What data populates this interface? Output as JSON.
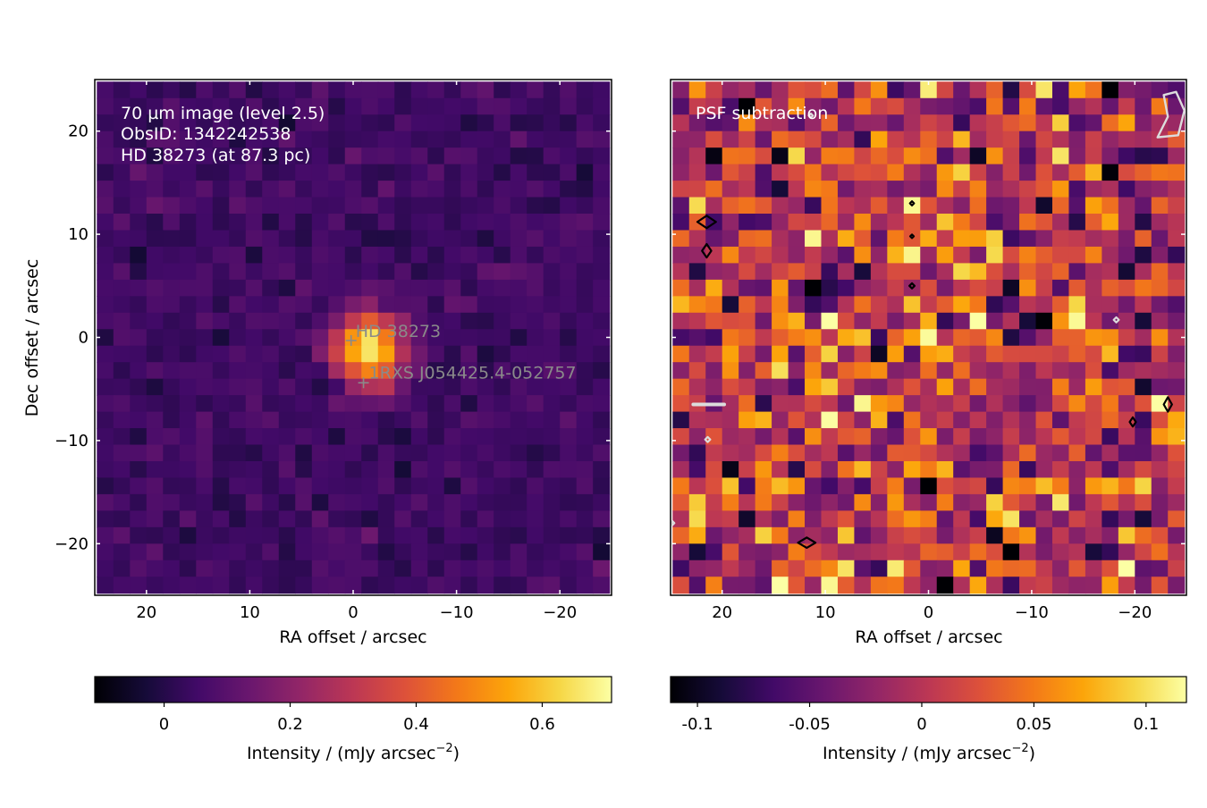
{
  "colors": {
    "colormap": "inferno",
    "marker": "#8a8a8a",
    "overlay_text": "#ffffff",
    "negative_contour": "#dcdcdc",
    "positive_contour": "#000000",
    "axes": "#000000"
  },
  "chart_data": [
    {
      "type": "heatmap",
      "panel": "left",
      "annotation_lines": [
        "70 µm image (level 2.5)",
        "ObsID: 1342242538",
        "HD 38273 (at 87.3 pc)"
      ],
      "xlabel": "RA offset / arcsec",
      "ylabel": "Dec offset / arcsec",
      "xlim": [
        25,
        -25
      ],
      "ylim": [
        -25,
        25
      ],
      "xticks": [
        20,
        10,
        0,
        -10,
        -20
      ],
      "xticklabels": [
        "20",
        "10",
        "0",
        "−10",
        "−20"
      ],
      "yticks": [
        20,
        10,
        0,
        -10,
        -20
      ],
      "yticklabels": [
        "20",
        "10",
        "0",
        "−10",
        "−20"
      ],
      "pixel_size_arcsec": 1.6,
      "grid_columns": 31,
      "grid_rows": 31,
      "background_mean": 0.05,
      "noise_sigma": 0.03,
      "source_peak": {
        "x": -1.6,
        "y": -1.2,
        "value": 0.69
      },
      "sources": [
        {
          "label": "HD  38273",
          "x": 0.2,
          "y": -0.3,
          "marker": "+"
        },
        {
          "label": "1RXS J054425.4-052757",
          "x": -1.0,
          "y": -4.4,
          "marker": "+"
        }
      ],
      "colorbar": {
        "vmin": -0.11,
        "vmax": 0.71,
        "ticks": [
          0,
          0.2,
          0.4,
          0.6
        ],
        "ticklabels": [
          "0",
          "0.2",
          "0.4",
          "0.6"
        ],
        "label_prefix": "Intensity / (mJy arcsec",
        "label_sup": "−2",
        "label_suffix": ")"
      }
    },
    {
      "type": "heatmap",
      "panel": "right",
      "annotation_lines": [
        "PSF subtraction"
      ],
      "xlabel": "RA offset / arcsec",
      "xlim": [
        25,
        -25
      ],
      "ylim": [
        -25,
        25
      ],
      "xticks": [
        20,
        10,
        0,
        -10,
        -20
      ],
      "xticklabels": [
        "20",
        "10",
        "0",
        "−10",
        "−20"
      ],
      "yticks": [
        20,
        10,
        0,
        -10,
        -20
      ],
      "pixel_size_arcsec": 1.6,
      "grid_columns": 31,
      "grid_rows": 31,
      "background_mean": 0.0,
      "noise_sigma": 0.045,
      "positive_contours": [
        {
          "x": 21.5,
          "y": 11.2,
          "w": 1.8,
          "h": 1.2
        },
        {
          "x": 21.5,
          "y": 8.4,
          "w": 0.9,
          "h": 1.3
        },
        {
          "x": 1.6,
          "y": 13.0,
          "w": 0.4,
          "h": 0.4
        },
        {
          "x": 1.6,
          "y": 9.8,
          "w": 0.25,
          "h": 0.25
        },
        {
          "x": 1.6,
          "y": 5.0,
          "w": 0.5,
          "h": 0.5
        },
        {
          "x": -19.8,
          "y": -8.2,
          "w": 0.6,
          "h": 0.9
        },
        {
          "x": -23.2,
          "y": -6.5,
          "w": 0.8,
          "h": 1.4
        },
        {
          "x": 11.8,
          "y": -19.9,
          "w": 1.7,
          "h": 1.0
        }
      ],
      "negative_contours": [
        {
          "x": 11.4,
          "y": 21.5,
          "w": 0.4,
          "h": 0.4
        },
        {
          "x": -18.2,
          "y": 1.7,
          "w": 0.5,
          "h": 0.5
        },
        {
          "x": 21.4,
          "y": -9.9,
          "w": 0.5,
          "h": 0.5
        },
        {
          "x": 24.8,
          "y": -18.0,
          "w": 0.3,
          "h": 0.3
        }
      ],
      "colorbar": {
        "vmin": -0.112,
        "vmax": 0.118,
        "ticks": [
          -0.1,
          -0.05,
          0,
          0.05,
          0.1
        ],
        "ticklabels": [
          "-0.1",
          "-0.05",
          "0",
          "0.05",
          "0.1"
        ],
        "label_prefix": "Intensity / (mJy arcsec",
        "label_sup": "−2",
        "label_suffix": ")"
      }
    }
  ]
}
